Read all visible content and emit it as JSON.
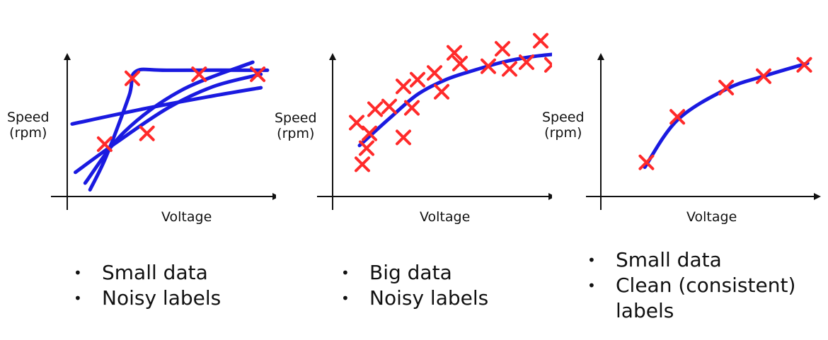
{
  "colors": {
    "fit_line": "#1a1ae0",
    "marker": "#ff2a2a",
    "axis": "#111111"
  },
  "panels": [
    {
      "ylabel_line1": "Speed",
      "ylabel_line2": "(rpm)",
      "xlabel": "Voltage",
      "bullets": [
        "Small data",
        "Noisy labels"
      ]
    },
    {
      "ylabel_line1": "Speed",
      "ylabel_line2": "(rpm)",
      "xlabel": "Voltage",
      "bullets": [
        "Big data",
        "Noisy labels"
      ]
    },
    {
      "ylabel_line1": "Speed",
      "ylabel_line2": "(rpm)",
      "xlabel": "Voltage",
      "bullets": [
        "Small data",
        "Clean (consistent)",
        "labels"
      ]
    }
  ],
  "chart_data": [
    {
      "type": "scatter",
      "xlabel": "Voltage",
      "ylabel": "Speed (rpm)",
      "points": [
        [
          0.23,
          0.39
        ],
        [
          0.49,
          0.47
        ],
        [
          0.4,
          0.88
        ],
        [
          0.81,
          0.91
        ],
        [
          1.17,
          0.91
        ]
      ],
      "fits": [
        [
          [
            0.14,
            0.05
          ],
          [
            0.24,
            0.3
          ],
          [
            0.38,
            0.75
          ],
          [
            0.42,
            0.93
          ],
          [
            0.62,
            0.94
          ],
          [
            1.23,
            0.94
          ]
        ],
        [
          [
            0.05,
            0.18
          ],
          [
            0.3,
            0.4
          ],
          [
            0.62,
            0.66
          ],
          [
            0.9,
            0.82
          ],
          [
            1.19,
            0.91
          ]
        ],
        [
          [
            0.03,
            0.54
          ],
          [
            0.5,
            0.66
          ],
          [
            0.9,
            0.75
          ],
          [
            1.19,
            0.81
          ]
        ],
        [
          [
            0.11,
            0.1
          ],
          [
            0.35,
            0.48
          ],
          [
            0.7,
            0.79
          ],
          [
            1.14,
            1.0
          ]
        ]
      ]
    },
    {
      "type": "scatter",
      "xlabel": "Voltage",
      "ylabel": "Speed (rpm)",
      "points": [
        [
          0.17,
          0.55
        ],
        [
          0.24,
          0.36
        ],
        [
          0.26,
          0.47
        ],
        [
          0.3,
          0.65
        ],
        [
          0.4,
          0.67
        ],
        [
          0.5,
          0.82
        ],
        [
          0.5,
          0.44
        ],
        [
          0.56,
          0.66
        ],
        [
          0.6,
          0.87
        ],
        [
          0.72,
          0.92
        ],
        [
          0.77,
          0.78
        ],
        [
          0.86,
          1.07
        ],
        [
          0.9,
          0.99
        ],
        [
          1.1,
          0.97
        ],
        [
          1.2,
          1.1
        ],
        [
          1.25,
          0.95
        ],
        [
          1.37,
          1.0
        ],
        [
          1.47,
          1.16
        ],
        [
          1.55,
          0.98
        ],
        [
          0.21,
          0.24
        ]
      ],
      "fits": [
        [
          [
            0.19,
            0.38
          ],
          [
            0.4,
            0.58
          ],
          [
            0.6,
            0.76
          ],
          [
            0.8,
            0.87
          ],
          [
            1.0,
            0.94
          ],
          [
            1.2,
            1.0
          ],
          [
            1.4,
            1.04
          ],
          [
            1.57,
            1.06
          ]
        ]
      ]
    },
    {
      "type": "scatter",
      "xlabel": "Voltage",
      "ylabel": "Speed (rpm)",
      "points": [
        [
          0.28,
          0.21
        ],
        [
          0.47,
          0.49
        ],
        [
          0.77,
          0.67
        ],
        [
          1.0,
          0.74
        ],
        [
          1.25,
          0.81
        ]
      ],
      "fits": [
        [
          [
            0.27,
            0.18
          ],
          [
            0.47,
            0.47
          ],
          [
            0.77,
            0.66
          ],
          [
            1.0,
            0.74
          ],
          [
            1.27,
            0.82
          ]
        ]
      ]
    }
  ]
}
